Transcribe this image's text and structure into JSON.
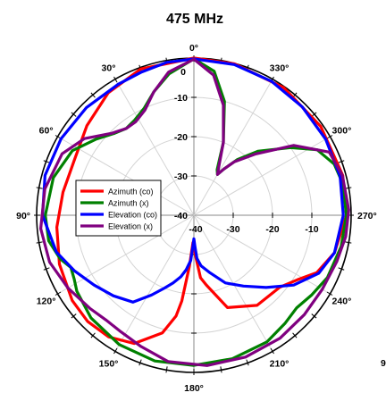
{
  "chart_data": {
    "type": "polar_line",
    "title": "475 MHz",
    "angle_tick_labels": [
      "0°",
      "30°",
      "60°",
      "90°",
      "120°",
      "150°",
      "180°",
      "210°",
      "240°",
      "270°",
      "300°",
      "330°"
    ],
    "angle_ticks_deg": [
      0,
      30,
      60,
      90,
      120,
      150,
      180,
      210,
      240,
      270,
      300,
      330
    ],
    "angle_direction": "counterclockwise, 0° at top",
    "radial_tick_labels": [
      "0",
      "-10",
      "-20",
      "-30",
      "-40"
    ],
    "radial_ticks": [
      0,
      -10,
      -20,
      -30,
      -40
    ],
    "radial_range": [
      -40,
      0
    ],
    "radial_unit": "",
    "extra_label": "9",
    "grid": true,
    "legend_position": "center-left",
    "series": [
      {
        "name": "Azimuth (co)",
        "color": "#ff0000",
        "points": [
          [
            0,
            0
          ],
          [
            20,
            -0.4
          ],
          [
            35,
            -2
          ],
          [
            50,
            -4.5
          ],
          [
            65,
            -6.5
          ],
          [
            80,
            -6.2
          ],
          [
            95,
            -5
          ],
          [
            110,
            -3.6
          ],
          [
            125,
            -2.2
          ],
          [
            135,
            -1.8
          ],
          [
            145,
            -2.2
          ],
          [
            155,
            -4
          ],
          [
            165,
            -9
          ],
          [
            170,
            -14
          ],
          [
            172,
            -18
          ],
          [
            175,
            -27
          ],
          [
            178,
            -33
          ],
          [
            182,
            -30
          ],
          [
            186,
            -24
          ],
          [
            190,
            -22
          ],
          [
            200,
            -15
          ],
          [
            215,
            -12
          ],
          [
            230,
            -11.5
          ],
          [
            238,
            -9
          ],
          [
            245,
            -5.5
          ],
          [
            255,
            -3
          ],
          [
            270,
            -1.2
          ],
          [
            285,
            -0.8
          ],
          [
            305,
            -0.6
          ],
          [
            325,
            -0.3
          ],
          [
            345,
            -0.1
          ],
          [
            360,
            0
          ]
        ]
      },
      {
        "name": "Azimuth (x)",
        "color": "#008000",
        "points": [
          [
            0,
            -0.2
          ],
          [
            10,
            -3.5
          ],
          [
            18,
            -7
          ],
          [
            25,
            -10
          ],
          [
            32,
            -11.5
          ],
          [
            38,
            -12
          ],
          [
            44,
            -11
          ],
          [
            52,
            -8.5
          ],
          [
            62,
            -5
          ],
          [
            75,
            -3
          ],
          [
            90,
            -2.2
          ],
          [
            100,
            -2.5
          ],
          [
            108,
            -4.2
          ],
          [
            113,
            -6
          ],
          [
            118,
            -5.5
          ],
          [
            123,
            -4.5
          ],
          [
            135,
            -3
          ],
          [
            150,
            -2
          ],
          [
            165,
            -1.6
          ],
          [
            180,
            -1.8
          ],
          [
            195,
            -2.2
          ],
          [
            210,
            -2.8
          ],
          [
            220,
            -4
          ],
          [
            228,
            -4.8
          ],
          [
            236,
            -3.8
          ],
          [
            245,
            -2.5
          ],
          [
            258,
            -1.7
          ],
          [
            270,
            -1.2
          ],
          [
            282,
            -1.3
          ],
          [
            290,
            -2
          ],
          [
            298,
            -4.5
          ],
          [
            305,
            -10
          ],
          [
            315,
            -17
          ],
          [
            322,
            -22
          ],
          [
            327,
            -26
          ],
          [
            330,
            -28
          ],
          [
            333,
            -27
          ],
          [
            338,
            -20
          ],
          [
            345,
            -10
          ],
          [
            352,
            -3
          ],
          [
            360,
            -0.2
          ]
        ]
      },
      {
        "name": "Elevation (co)",
        "color": "#0000ff",
        "points": [
          [
            0,
            -0.2
          ],
          [
            10,
            -0.5
          ],
          [
            20,
            -1.2
          ],
          [
            30,
            -1.5
          ],
          [
            45,
            -1.3
          ],
          [
            60,
            -1
          ],
          [
            75,
            -0.8
          ],
          [
            90,
            -1.5
          ],
          [
            105,
            -3.8
          ],
          [
            115,
            -6.5
          ],
          [
            125,
            -9
          ],
          [
            135,
            -11
          ],
          [
            145,
            -13
          ],
          [
            152,
            -17
          ],
          [
            158,
            -20
          ],
          [
            163,
            -22
          ],
          [
            168,
            -24
          ],
          [
            172,
            -26
          ],
          [
            176,
            -28.5
          ],
          [
            178,
            -32
          ],
          [
            180,
            -34
          ],
          [
            182,
            -32
          ],
          [
            184,
            -29
          ],
          [
            188,
            -27
          ],
          [
            195,
            -25
          ],
          [
            205,
            -21
          ],
          [
            215,
            -18
          ],
          [
            225,
            -14
          ],
          [
            235,
            -9
          ],
          [
            245,
            -5
          ],
          [
            255,
            -3
          ],
          [
            270,
            -2
          ],
          [
            285,
            -1.5
          ],
          [
            300,
            -1.3
          ],
          [
            315,
            -1
          ],
          [
            330,
            -0.6
          ],
          [
            345,
            -0.3
          ],
          [
            360,
            -0.2
          ]
        ]
      },
      {
        "name": "Elevation (x)",
        "color": "#800080",
        "points": [
          [
            0,
            -0.3
          ],
          [
            10,
            -3
          ],
          [
            18,
            -7
          ],
          [
            25,
            -10.5
          ],
          [
            32,
            -12
          ],
          [
            38,
            -12
          ],
          [
            45,
            -10.5
          ],
          [
            55,
            -6
          ],
          [
            65,
            -3
          ],
          [
            80,
            -1.5
          ],
          [
            95,
            -0.9
          ],
          [
            108,
            -1.4
          ],
          [
            120,
            -3
          ],
          [
            132,
            -4.5
          ],
          [
            140,
            -5.2
          ],
          [
            148,
            -5
          ],
          [
            158,
            -4
          ],
          [
            170,
            -2.2
          ],
          [
            185,
            -1.6
          ],
          [
            200,
            -1.6
          ],
          [
            215,
            -1.8
          ],
          [
            228,
            -2.2
          ],
          [
            240,
            -2.3
          ],
          [
            252,
            -1.8
          ],
          [
            262,
            -1
          ],
          [
            272,
            -0.6
          ],
          [
            285,
            -0.9
          ],
          [
            295,
            -2
          ],
          [
            305,
            -9
          ],
          [
            315,
            -18
          ],
          [
            323,
            -23
          ],
          [
            327,
            -26
          ],
          [
            330,
            -28
          ],
          [
            333,
            -26
          ],
          [
            338,
            -20
          ],
          [
            345,
            -11
          ],
          [
            352,
            -4
          ],
          [
            360,
            -0.3
          ]
        ]
      }
    ]
  }
}
